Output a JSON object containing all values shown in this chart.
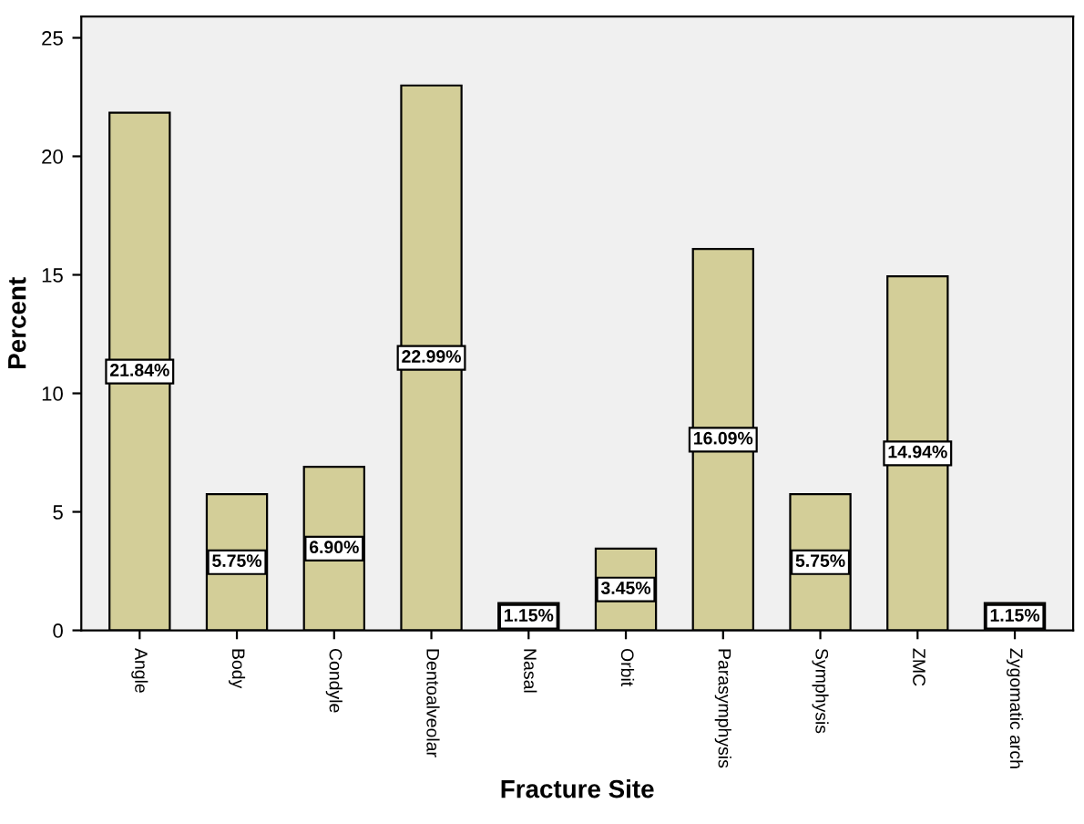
{
  "chart_data": {
    "type": "bar",
    "xlabel": "Fracture Site",
    "ylabel": "Percent",
    "categories": [
      "Angle",
      "Body",
      "Condyle",
      "Dentoalveolar",
      "Nasal",
      "Orbit",
      "Parasymphysis",
      "Symphysis",
      "ZMC",
      "Zygomatic arch"
    ],
    "values": [
      21.84,
      5.75,
      6.9,
      22.99,
      1.15,
      3.45,
      16.09,
      5.75,
      14.94,
      1.15
    ],
    "value_labels": [
      "21.84%",
      "5.75%",
      "6.90%",
      "22.99%",
      "1.15%",
      "3.45%",
      "16.09%",
      "5.75%",
      "14.94%",
      "1.15%"
    ],
    "color": "#d3ce98",
    "ylim": [
      0,
      25.9
    ],
    "yticks": [
      0,
      5,
      10,
      15,
      20,
      25
    ],
    "grid": false,
    "legend": false
  }
}
